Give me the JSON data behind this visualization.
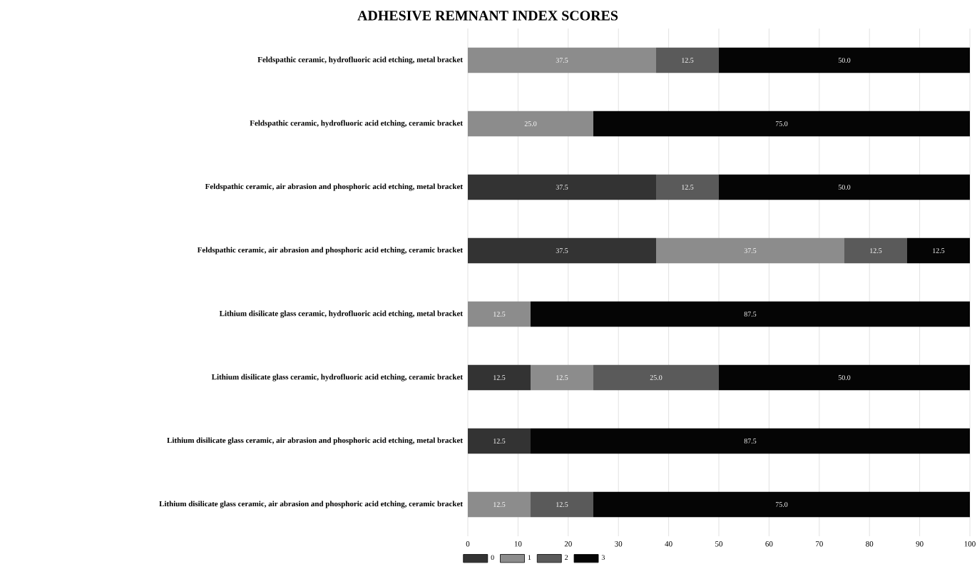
{
  "chart_data": {
    "type": "bar",
    "orientation": "horizontal",
    "stacked": true,
    "title": "ADHESIVE REMNANT INDEX SCORES",
    "categories": [
      "Feldspathic ceramic, hydrofluoric acid etching, metal bracket",
      "Feldspathic ceramic, hydrofluoric acid etching, ceramic bracket",
      "Feldspathic ceramic, air abrasion and phosphoric acid etching, metal bracket",
      "Feldspathic ceramic, air abrasion and phosphoric acid etching, ceramic bracket",
      "Lithium disilicate glass ceramic, hydrofluoric acid etching, metal bracket",
      "Lithium disilicate glass ceramic, hydrofluoric acid etching, ceramic bracket",
      "Lithium disilicate glass ceramic, air abrasion and phosphoric acid etching, metal bracket",
      "Lithium disilicate glass ceramic, air abrasion and phosphoric acid etching, ceramic bracket"
    ],
    "series": [
      {
        "name": "0",
        "color": "#333333",
        "values": [
          null,
          null,
          37.5,
          37.5,
          null,
          12.5,
          12.5,
          null
        ],
        "value_labels": [
          null,
          null,
          "37.5",
          "37.5",
          null,
          "12.5",
          "12.5",
          null
        ]
      },
      {
        "name": "1",
        "color": "#8c8c8c",
        "values": [
          37.5,
          25,
          null,
          37.5,
          12.5,
          12.5,
          null,
          12.5
        ],
        "value_labels": [
          "37.5",
          "25.0",
          null,
          "37.5",
          "12.5",
          "12.5",
          null,
          "12.5"
        ]
      },
      {
        "name": "2",
        "color": "#5a5a5a",
        "values": [
          12.5,
          null,
          12.5,
          12.5,
          null,
          25,
          null,
          12.5
        ],
        "value_labels": [
          "12.5",
          null,
          "12.5",
          "12.5",
          null,
          "25.0",
          null,
          "12.5"
        ]
      },
      {
        "name": "3",
        "color": "#050505",
        "values": [
          50,
          75,
          50,
          12.5,
          87.5,
          50,
          87.5,
          75
        ],
        "value_labels": [
          "50.0",
          "75.0",
          "50.0",
          "12.5",
          "87.5",
          "50.0",
          "87.5",
          "75.0"
        ]
      }
    ],
    "xlim": [
      0,
      100
    ],
    "xticks": [
      0,
      10,
      20,
      30,
      40,
      50,
      60,
      70,
      80,
      90,
      100
    ],
    "grid": "x",
    "legend": "bottom left"
  }
}
